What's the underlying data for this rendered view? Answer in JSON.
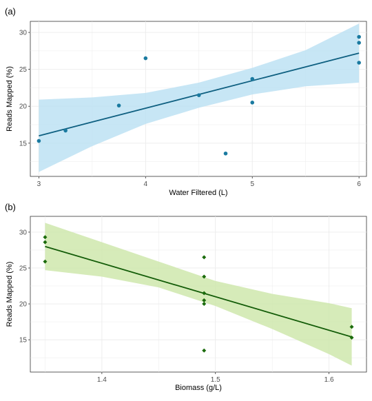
{
  "chart_data": [
    {
      "panel": "(a)",
      "type": "scatter",
      "xlabel": "Water Filtered (L)",
      "ylabel": "Reads Mapped (%)",
      "xlim": [
        2.92,
        6.07
      ],
      "ylim": [
        10.5,
        31.5
      ],
      "x_ticks": [
        3,
        4,
        5,
        6
      ],
      "y_ticks": [
        15,
        20,
        25,
        30
      ],
      "grid": true,
      "colors": {
        "point": "#1a7aa0",
        "line": "#0e5f80",
        "band": "#b9e0f2"
      },
      "points": [
        {
          "x": 3.0,
          "y": 15.3
        },
        {
          "x": 3.25,
          "y": 16.7
        },
        {
          "x": 3.75,
          "y": 20.1
        },
        {
          "x": 4.0,
          "y": 26.5
        },
        {
          "x": 4.5,
          "y": 21.5
        },
        {
          "x": 4.75,
          "y": 13.6
        },
        {
          "x": 5.0,
          "y": 23.7
        },
        {
          "x": 5.0,
          "y": 20.5
        },
        {
          "x": 6.0,
          "y": 29.4
        },
        {
          "x": 6.0,
          "y": 28.6
        },
        {
          "x": 6.0,
          "y": 25.9
        }
      ],
      "fit": {
        "x": [
          3.0,
          6.0
        ],
        "y": [
          16.0,
          27.2
        ]
      },
      "band": {
        "x": [
          3.0,
          3.5,
          4.0,
          4.5,
          5.0,
          5.5,
          6.0
        ],
        "lower": [
          11.1,
          14.6,
          17.6,
          19.8,
          21.6,
          22.7,
          23.2
        ],
        "upper": [
          20.9,
          21.2,
          21.8,
          23.2,
          25.2,
          27.6,
          31.2
        ]
      }
    },
    {
      "panel": "(b)",
      "type": "scatter",
      "xlabel": "Biomass (g/L)",
      "ylabel": "Reads Mapped (%)",
      "xlim": [
        1.337,
        1.633
      ],
      "ylim": [
        10.5,
        32.2
      ],
      "x_ticks": [
        1.4,
        1.5,
        1.6
      ],
      "y_ticks": [
        15,
        20,
        25,
        30
      ],
      "grid": true,
      "colors": {
        "point": "#1b6b0c",
        "line": "#135c08",
        "band": "#cce6a8"
      },
      "points": [
        {
          "x": 1.35,
          "y": 29.3
        },
        {
          "x": 1.35,
          "y": 28.6
        },
        {
          "x": 1.35,
          "y": 25.9
        },
        {
          "x": 1.49,
          "y": 26.5
        },
        {
          "x": 1.49,
          "y": 23.8
        },
        {
          "x": 1.49,
          "y": 21.5
        },
        {
          "x": 1.49,
          "y": 20.5
        },
        {
          "x": 1.49,
          "y": 20.0
        },
        {
          "x": 1.49,
          "y": 13.5
        },
        {
          "x": 1.62,
          "y": 16.8
        },
        {
          "x": 1.62,
          "y": 15.3
        }
      ],
      "fit": {
        "x": [
          1.35,
          1.62
        ],
        "y": [
          28.0,
          15.4
        ]
      },
      "band": {
        "x": [
          1.35,
          1.4,
          1.45,
          1.5,
          1.55,
          1.6,
          1.62
        ],
        "lower": [
          24.7,
          23.8,
          22.3,
          19.7,
          16.5,
          13.0,
          11.4
        ],
        "upper": [
          31.3,
          28.6,
          25.9,
          23.2,
          21.4,
          20.1,
          19.4
        ]
      }
    }
  ]
}
